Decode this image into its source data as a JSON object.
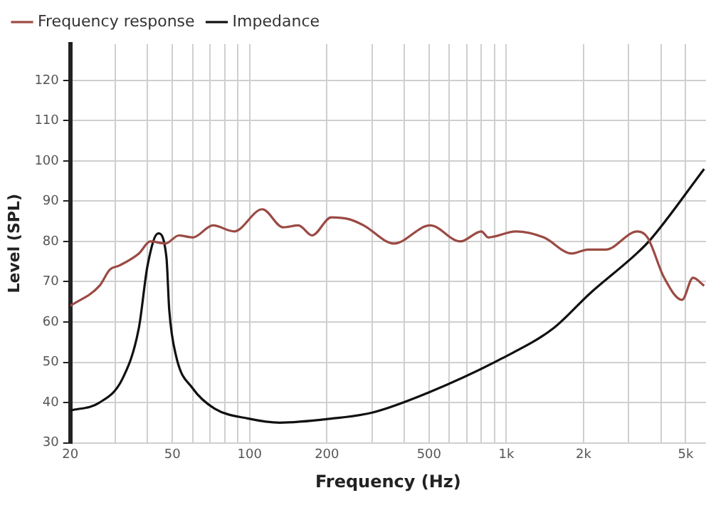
{
  "chart_data": {
    "type": "line",
    "xlabel": "Frequency (Hz)",
    "ylabel": "Level (SPL)",
    "log": "x",
    "xlim": [
      20,
      6000
    ],
    "ylim": [
      30,
      129
    ],
    "xticks": [
      20,
      {
        "value": 30,
        "label": null
      },
      {
        "value": 40,
        "label": null
      },
      50,
      {
        "value": 60,
        "label": null
      },
      {
        "value": 70,
        "label": null
      },
      {
        "value": 80,
        "label": null
      },
      {
        "value": 90,
        "label": null
      },
      100,
      200,
      {
        "value": 300,
        "label": null
      },
      {
        "value": 400,
        "label": null
      },
      500,
      {
        "value": 600,
        "label": null
      },
      {
        "value": 700,
        "label": null
      },
      {
        "value": 800,
        "label": null
      },
      {
        "value": 900,
        "label": null
      },
      {
        "value": 1000,
        "label": "1k"
      },
      {
        "value": 2000,
        "label": "2k"
      },
      {
        "value": 3000,
        "label": null
      },
      {
        "value": 4000,
        "label": null
      },
      {
        "value": 5000,
        "label": "5k"
      }
    ],
    "yticks": [
      30,
      40,
      50,
      60,
      70,
      80,
      90,
      100,
      110,
      120
    ],
    "grid": true,
    "legend": "top left",
    "marker": "none",
    "line_style": "solid",
    "series": [
      {
        "name": "Frequency response",
        "color": "#9b4a44",
        "x": [
          20,
          26,
          28.5,
          31,
          37,
          41,
          47,
          53,
          60,
          72,
          87,
          112,
          135,
          155,
          175,
          208,
          245,
          278,
          365,
          505,
          662,
          800,
          850,
          1090,
          1400,
          1800,
          2080,
          2440,
          3240,
          3550,
          4120,
          4840,
          5340,
          5900
        ],
        "values": [
          64,
          69,
          73,
          74,
          77,
          80,
          79.5,
          81.5,
          81,
          84,
          82.5,
          88,
          83.5,
          84,
          81.5,
          86,
          85.5,
          84,
          79.5,
          84,
          80,
          82.5,
          81,
          82.5,
          81,
          77,
          78,
          78,
          82.5,
          81,
          71,
          65.5,
          71,
          69
        ]
      },
      {
        "name": "Impedance",
        "color": "#111111",
        "x": [
          20,
          26,
          32,
          37,
          40,
          44,
          47.4,
          48.6,
          51.7,
          60,
          73,
          99,
          131,
          208,
          300,
          498,
          964,
          1530,
          2110,
          3220,
          3650,
          5900
        ],
        "values": [
          38,
          40,
          46,
          58.5,
          74,
          82,
          76,
          63,
          51.5,
          43.5,
          38.5,
          36,
          35,
          36,
          37.5,
          42.5,
          51,
          58.5,
          67,
          77,
          80.5,
          98
        ]
      }
    ]
  }
}
